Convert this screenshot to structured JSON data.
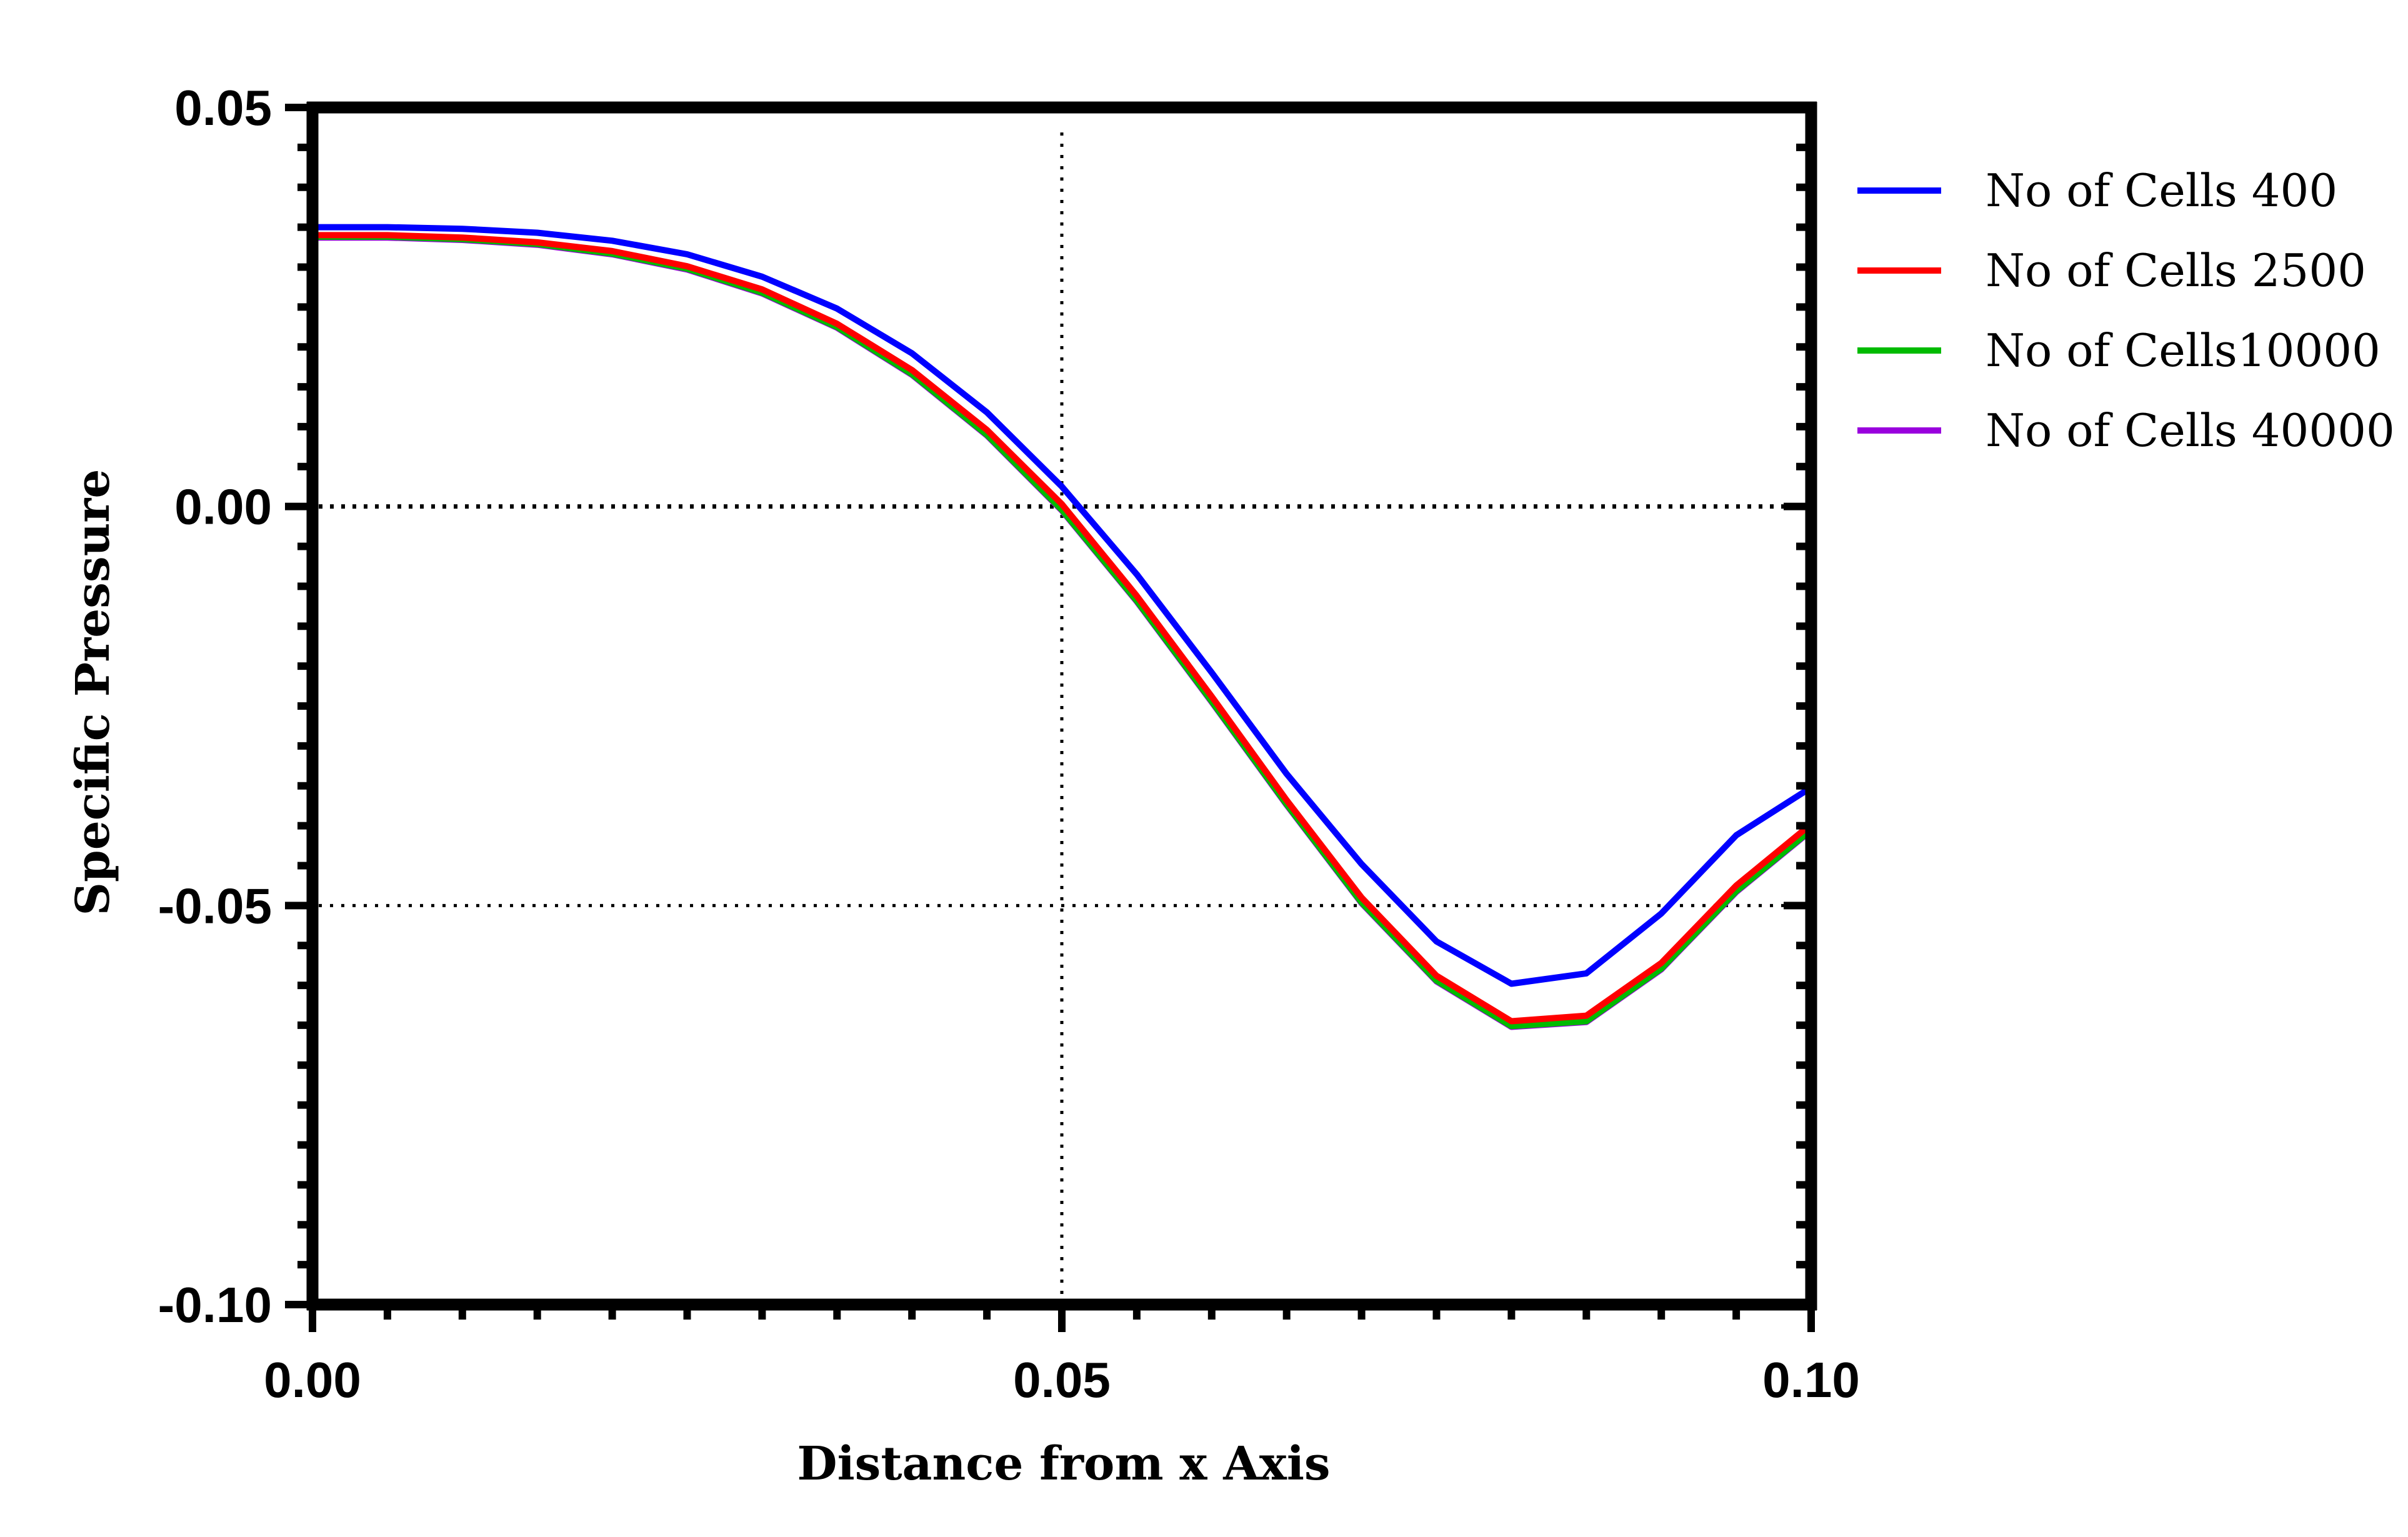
{
  "chart_data": {
    "type": "line",
    "xlabel": "Distance from x Axis",
    "ylabel": "Specific Pressure",
    "xlim": [
      0,
      0.1
    ],
    "ylim": [
      -0.1,
      0.05
    ],
    "x_ticks": [
      "0.00",
      "0.05",
      "0.10"
    ],
    "y_ticks": [
      "0.05",
      "0.00",
      "-0.05",
      "-0.10"
    ],
    "x_tick_values": [
      0,
      0.05,
      0.1
    ],
    "y_tick_values": [
      0.05,
      0,
      -0.05,
      -0.1
    ],
    "reference_lines": {
      "x": [
        0.05
      ],
      "y": [
        0,
        -0.05
      ]
    },
    "grid": false,
    "legend_position": "right",
    "series": [
      {
        "name": "No of Cells 400",
        "color": "#0000ff",
        "x": [
          0,
          0.005,
          0.01,
          0.015,
          0.02,
          0.025,
          0.03,
          0.035,
          0.04,
          0.045,
          0.05,
          0.055,
          0.06,
          0.065,
          0.07,
          0.075,
          0.08,
          0.085,
          0.09,
          0.095,
          0.1
        ],
        "y": [
          0.035,
          0.035,
          0.0348,
          0.0343,
          0.0333,
          0.0316,
          0.0288,
          0.0248,
          0.0192,
          0.0118,
          0.0025,
          -0.0085,
          -0.0208,
          -0.0335,
          -0.0448,
          -0.0545,
          -0.0598,
          -0.0585,
          -0.051,
          -0.0412,
          -0.0352
        ]
      },
      {
        "name": "No of Cells 2500",
        "color": "#ff0000",
        "x": [
          0,
          0.005,
          0.01,
          0.015,
          0.02,
          0.025,
          0.03,
          0.035,
          0.04,
          0.045,
          0.05,
          0.055,
          0.06,
          0.065,
          0.07,
          0.075,
          0.08,
          0.085,
          0.09,
          0.095,
          0.1
        ],
        "y": [
          0.034,
          0.034,
          0.0337,
          0.0331,
          0.032,
          0.0301,
          0.0272,
          0.0229,
          0.0171,
          0.0096,
          0.0003,
          -0.0112,
          -0.0238,
          -0.0368,
          -0.049,
          -0.0588,
          -0.0645,
          -0.0638,
          -0.0572,
          -0.0475,
          -0.0398
        ]
      },
      {
        "name": "No of Cells10000",
        "color": "#00bb00",
        "x": [
          0,
          0.005,
          0.01,
          0.015,
          0.02,
          0.025,
          0.03,
          0.035,
          0.04,
          0.045,
          0.05,
          0.055,
          0.06,
          0.065,
          0.07,
          0.075,
          0.08,
          0.085,
          0.09,
          0.095,
          0.1
        ],
        "y": [
          0.0338,
          0.0338,
          0.0335,
          0.0329,
          0.0317,
          0.0298,
          0.0268,
          0.0225,
          0.0166,
          0.009,
          -0.0004,
          -0.0118,
          -0.0244,
          -0.0373,
          -0.0496,
          -0.0594,
          -0.0651,
          -0.0645,
          -0.0579,
          -0.0482,
          -0.0405
        ]
      },
      {
        "name": "No of Cells 40000",
        "color": "#9900dd",
        "x": [
          0,
          0.005,
          0.01,
          0.015,
          0.02,
          0.025,
          0.03,
          0.035,
          0.04,
          0.045,
          0.05,
          0.055,
          0.06,
          0.065,
          0.07,
          0.075,
          0.08,
          0.085,
          0.09,
          0.095,
          0.1
        ],
        "y": [
          0.0337,
          0.0337,
          0.0334,
          0.0328,
          0.0316,
          0.0297,
          0.0267,
          0.0224,
          0.0165,
          0.0089,
          -0.0005,
          -0.0119,
          -0.0245,
          -0.0374,
          -0.0497,
          -0.0595,
          -0.0652,
          -0.0646,
          -0.058,
          -0.0483,
          -0.0406
        ]
      }
    ]
  }
}
